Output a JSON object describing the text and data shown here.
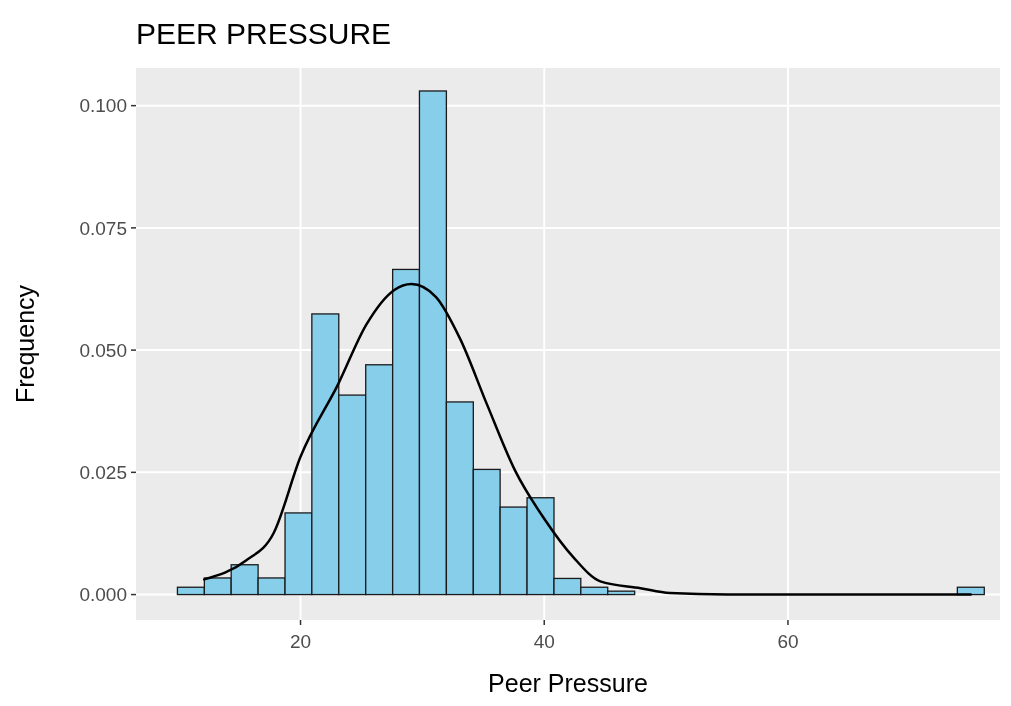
{
  "chart_data": {
    "type": "histogram",
    "title": "PEER PRESSURE",
    "xlabel": "Peer Pressure",
    "ylabel": "Frequency",
    "bins": [
      9.9,
      12.11,
      14.31,
      16.52,
      18.73,
      20.93,
      23.14,
      25.35,
      27.56,
      29.76,
      31.97,
      34.18,
      36.38,
      38.59,
      40.8,
      43.0,
      45.21,
      47.42,
      49.62,
      51.83,
      54.04,
      56.24,
      58.45,
      60.66,
      62.87,
      65.07,
      67.28,
      69.49,
      71.69,
      73.9,
      76.11
    ],
    "values": [
      0.0015,
      0.0034,
      0.0061,
      0.0034,
      0.0167,
      0.0574,
      0.0408,
      0.047,
      0.0665,
      0.103,
      0.0394,
      0.0256,
      0.0179,
      0.0198,
      0.0033,
      0.0015,
      0.0007,
      0,
      0,
      0,
      0,
      0,
      0,
      0,
      0,
      0,
      0,
      0,
      0,
      0.0015
    ],
    "color": "#87ceeb",
    "series": [
      {
        "type": "line",
        "color": "#000000",
        "x": [
          12.1,
          15.5,
          17.8,
          20,
          23.1,
          25.4,
          27.7,
          29.1,
          31.1,
          33.1,
          35.3,
          37.6,
          40,
          42.4,
          44.6,
          47.9,
          50.3,
          55,
          60,
          65,
          70,
          75
        ],
        "values": [
          0.0031,
          0.0069,
          0.0126,
          0.0282,
          0.0431,
          0.0552,
          0.0623,
          0.0635,
          0.0609,
          0.0523,
          0.0389,
          0.0254,
          0.0155,
          0.0076,
          0.0027,
          0.0013,
          0.0003,
          0,
          0,
          0,
          0,
          0
        ]
      }
    ],
    "xlim": [
      6.5,
      77.4
    ],
    "ylim": [
      -0.0052,
      0.1077
    ],
    "xticks": [
      20,
      40,
      60
    ],
    "yticks": [
      {
        "value": 0,
        "label": "0.000"
      },
      {
        "value": 0.025,
        "label": "0.025"
      },
      {
        "value": 0.05,
        "label": "0.050"
      },
      {
        "value": 0.075,
        "label": "0.075"
      },
      {
        "value": 0.1,
        "label": "0.100"
      }
    ],
    "grid": true
  }
}
